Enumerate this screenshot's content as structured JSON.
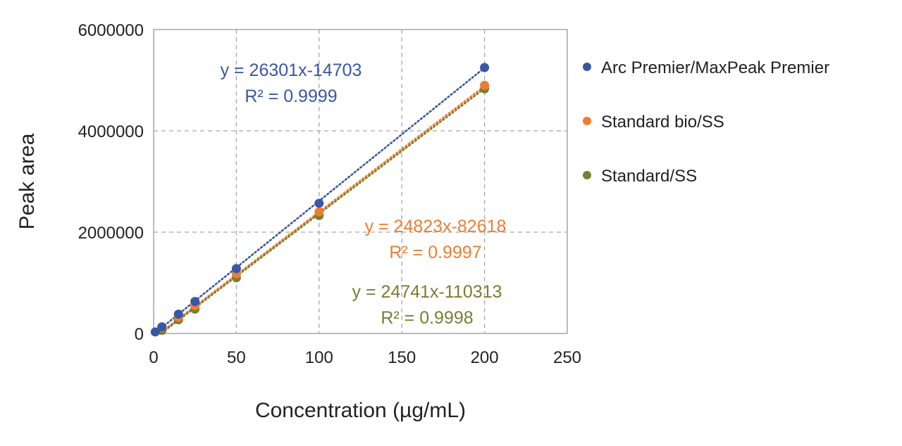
{
  "chart_data": {
    "type": "scatter",
    "xlabel": "Concentration (µg/mL)",
    "ylabel": "Peak area",
    "xlim": [
      0,
      250
    ],
    "ylim": [
      0,
      6000000
    ],
    "x_ticks": [
      0,
      50,
      100,
      150,
      200,
      250
    ],
    "y_ticks": [
      0,
      2000000,
      4000000,
      6000000
    ],
    "x_tick_labels": [
      "0",
      "50",
      "100",
      "150",
      "200",
      "250"
    ],
    "y_tick_labels": [
      "0",
      "2000000",
      "4000000",
      "6000000"
    ],
    "grid": true,
    "legend_position": "right",
    "series": [
      {
        "name": "Arc Premier/MaxPeak Premier",
        "color": "#3a56a5",
        "x": [
          1,
          5,
          15,
          25,
          50,
          100,
          200
        ],
        "y": [
          30000,
          130000,
          380000,
          630000,
          1280000,
          2570000,
          5250000
        ],
        "trendline": {
          "slope": 26301,
          "intercept": -14703
        },
        "equation": "y = 26301x-14703",
        "r2": "R² = 0.9999"
      },
      {
        "name": "Standard bio/SS",
        "color": "#ee7d31",
        "x": [
          5,
          15,
          25,
          50,
          100,
          200
        ],
        "y": [
          120000,
          320000,
          550000,
          1180000,
          2400000,
          4900000
        ],
        "trendline": {
          "slope": 24823,
          "intercept": -82618
        },
        "equation": "y = 24823x-82618",
        "r2": "R² = 0.9997"
      },
      {
        "name": "Standard/SS",
        "color": "#7a7e32",
        "x": [
          5,
          15,
          25,
          50,
          100,
          200
        ],
        "y": [
          60000,
          270000,
          480000,
          1100000,
          2330000,
          4830000
        ],
        "trendline": {
          "slope": 24741,
          "intercept": -110313
        },
        "equation": "y = 24741x-110313",
        "r2": "R² = 0.9998"
      }
    ]
  }
}
